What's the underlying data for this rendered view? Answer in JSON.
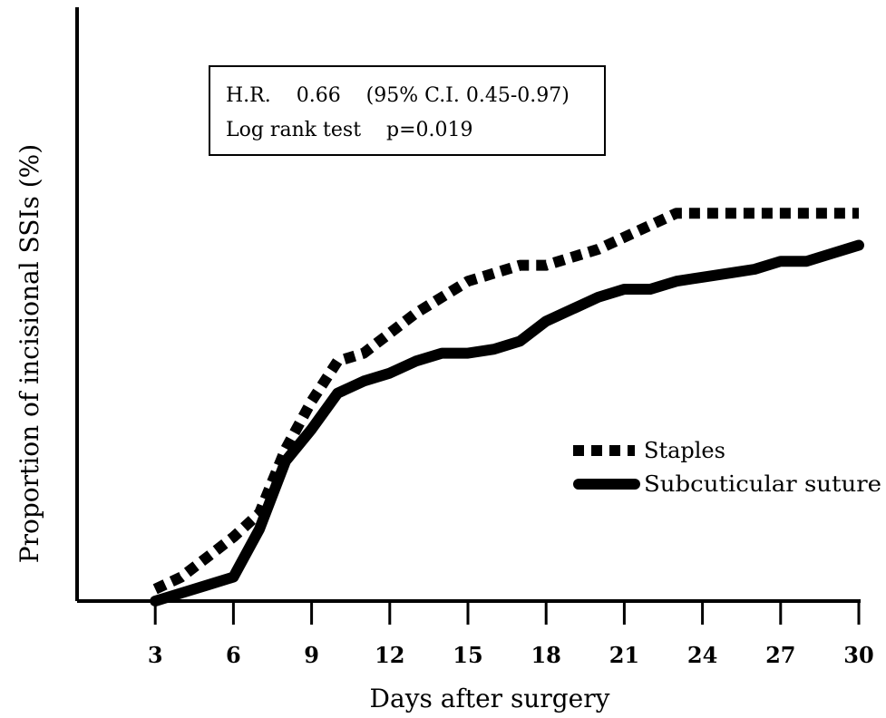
{
  "chart_data": {
    "type": "line",
    "title": "",
    "xlabel": "Days after surgery",
    "ylabel": "Proportion of incisional SSIs (%)",
    "xlim": [
      0,
      30
    ],
    "xticks": [
      3,
      6,
      9,
      12,
      15,
      18,
      21,
      24,
      27,
      30
    ],
    "ylim": [
      0,
      100
    ],
    "legend_position": "right",
    "annotations": [
      "H.R.    0.66    (95% C.I. 0.45-0.97)",
      "Log rank test    p=0.019"
    ],
    "series": [
      {
        "name": "Staples",
        "style": "dotted",
        "x": [
          3,
          4,
          5,
          6,
          7,
          8,
          9,
          10,
          11,
          12,
          13,
          14,
          15,
          16,
          17,
          18,
          19,
          20,
          21,
          22,
          23,
          24,
          25,
          26,
          27,
          28,
          29,
          30
        ],
        "y": [
          3,
          6,
          11,
          16,
          22,
          38,
          50,
          60,
          62,
          67,
          72,
          76,
          80,
          82,
          84,
          84,
          86,
          88,
          91,
          94,
          97,
          97,
          97,
          97,
          97,
          97,
          97,
          97
        ]
      },
      {
        "name": "Subcuticular suture",
        "style": "solid",
        "x": [
          3,
          4,
          5,
          6,
          7,
          8,
          9,
          10,
          11,
          12,
          13,
          14,
          15,
          16,
          17,
          18,
          19,
          20,
          21,
          22,
          23,
          24,
          25,
          26,
          27,
          28,
          29,
          30
        ],
        "y": [
          0,
          2,
          4,
          6,
          18,
          35,
          43,
          52,
          55,
          57,
          60,
          62,
          62,
          63,
          65,
          70,
          73,
          76,
          78,
          78,
          80,
          81,
          82,
          83,
          85,
          85,
          87,
          89
        ]
      }
    ]
  }
}
